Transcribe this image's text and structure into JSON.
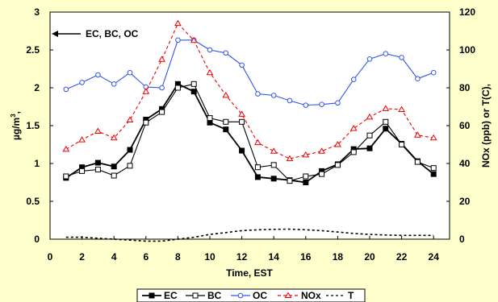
{
  "chart_data": {
    "type": "line",
    "title": "",
    "xlabel": "Time, EST",
    "ylabel": "µg/m",
    "ylabel_sup": "3",
    "ylabel_suffix": ",",
    "y2label": "NOx (ppb) or T(C),",
    "xlim": [
      0,
      25
    ],
    "ylim": [
      0,
      3
    ],
    "y2lim": [
      0,
      120
    ],
    "xticks": [
      0,
      2,
      4,
      6,
      8,
      10,
      12,
      14,
      16,
      18,
      20,
      22,
      24
    ],
    "yticks": [
      "0",
      "0.5",
      "1",
      "1.5",
      "2",
      "2.5",
      "3"
    ],
    "y2ticks": [
      "0",
      "20",
      "40",
      "60",
      "80",
      "100",
      "120"
    ],
    "annotation": "EC, BC, OC",
    "legend_position": "bottom",
    "x": [
      1,
      2,
      3,
      4,
      5,
      6,
      7,
      8,
      9,
      10,
      11,
      12,
      13,
      14,
      15,
      16,
      17,
      18,
      19,
      20,
      21,
      22,
      23,
      24
    ],
    "series": [
      {
        "name": "EC",
        "axis": "left",
        "color": "#000000",
        "marker": "filled-square",
        "values": [
          0.81,
          0.95,
          1.01,
          0.96,
          1.18,
          1.58,
          1.72,
          2.05,
          1.95,
          1.54,
          1.45,
          1.17,
          0.82,
          0.8,
          0.78,
          0.75,
          0.9,
          0.99,
          1.19,
          1.2,
          1.46,
          1.26,
          1.03,
          0.86
        ]
      },
      {
        "name": "BC",
        "axis": "left",
        "color": "#000000",
        "marker": "open-square",
        "values": [
          0.83,
          0.9,
          0.92,
          0.84,
          0.97,
          1.54,
          1.68,
          2.0,
          2.05,
          1.6,
          1.55,
          1.55,
          0.95,
          0.98,
          0.77,
          0.83,
          0.86,
          0.98,
          1.15,
          1.37,
          1.55,
          1.25,
          1.02,
          0.94
        ]
      },
      {
        "name": "OC",
        "axis": "left",
        "color": "#3355ee",
        "marker": "open-circle",
        "values": [
          1.98,
          2.07,
          2.17,
          2.05,
          2.2,
          2.01,
          2.0,
          2.63,
          2.63,
          2.5,
          2.46,
          2.3,
          1.92,
          1.9,
          1.83,
          1.77,
          1.78,
          1.8,
          2.11,
          2.38,
          2.45,
          2.4,
          2.12,
          2.2
        ]
      },
      {
        "name": "NOx",
        "axis": "right",
        "color": "#ee0000",
        "marker": "open-triangle",
        "dash": "4,3",
        "values": [
          47.5,
          52.5,
          57,
          53.5,
          63,
          78,
          95,
          114,
          105,
          88,
          76,
          66,
          51,
          46.5,
          42.5,
          44.5,
          46.5,
          50,
          58.5,
          64.5,
          69,
          68.5,
          55,
          53.5
        ]
      },
      {
        "name": "T",
        "axis": "right",
        "color": "#000000",
        "marker": "none",
        "dash": "3,3",
        "values": [
          1,
          1,
          0.5,
          0,
          -0.5,
          -1,
          -1,
          0,
          1,
          2.5,
          3.5,
          4.5,
          5,
          5.2,
          5.3,
          5,
          4.5,
          3.8,
          3,
          2.5,
          2.2,
          2,
          2,
          2
        ]
      }
    ]
  }
}
